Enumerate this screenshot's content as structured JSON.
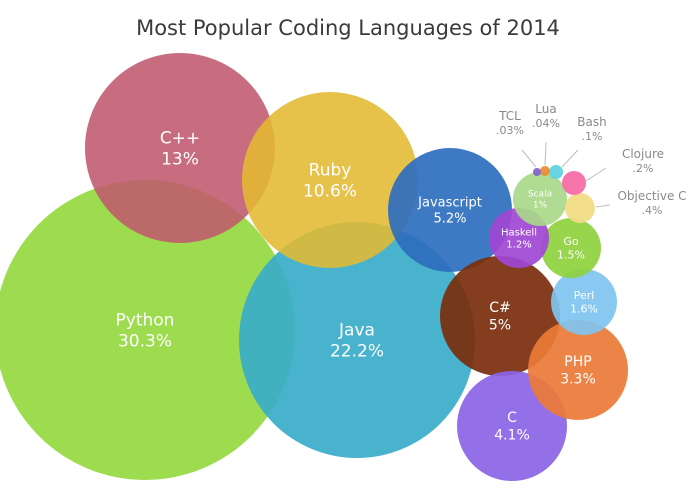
{
  "chart_data": {
    "type": "bubble",
    "title": "Most Popular Coding Languages of 2014",
    "series": [
      {
        "name": "Python",
        "value": "30.3%",
        "color": "#96D940"
      },
      {
        "name": "Java",
        "value": "22.2%",
        "color": "#3AACC9"
      },
      {
        "name": "C++",
        "value": "13%",
        "color": "#C0596D"
      },
      {
        "name": "Ruby",
        "value": "10.6%",
        "color": "#E3BA31"
      },
      {
        "name": "Javascript",
        "value": "5.2%",
        "color": "#2E6EBE"
      },
      {
        "name": "C#",
        "value": "5%",
        "color": "#7A2E0C"
      },
      {
        "name": "C",
        "value": "4.1%",
        "color": "#8A63E6"
      },
      {
        "name": "PHP",
        "value": "3.3%",
        "color": "#EC7A37"
      },
      {
        "name": "Perl",
        "value": "1.6%",
        "color": "#7FC4F0"
      },
      {
        "name": "Go",
        "value": "1.5%",
        "color": "#8ED13E"
      },
      {
        "name": "Haskell",
        "value": "1.2%",
        "color": "#A046D4"
      },
      {
        "name": "Scala",
        "value": "1%",
        "color": "#A9D889"
      },
      {
        "name": "Objective C",
        "value": ".4%",
        "color": "#F2DC86"
      },
      {
        "name": "Clojure",
        "value": ".2%",
        "color": "#F56FA8"
      },
      {
        "name": "Bash",
        "value": ".1%",
        "color": "#5FD3E0"
      },
      {
        "name": "Lua",
        "value": ".04%",
        "color": "#EB8E31"
      },
      {
        "name": "TCL",
        "value": ".03%",
        "color": "#8465C9"
      }
    ]
  }
}
